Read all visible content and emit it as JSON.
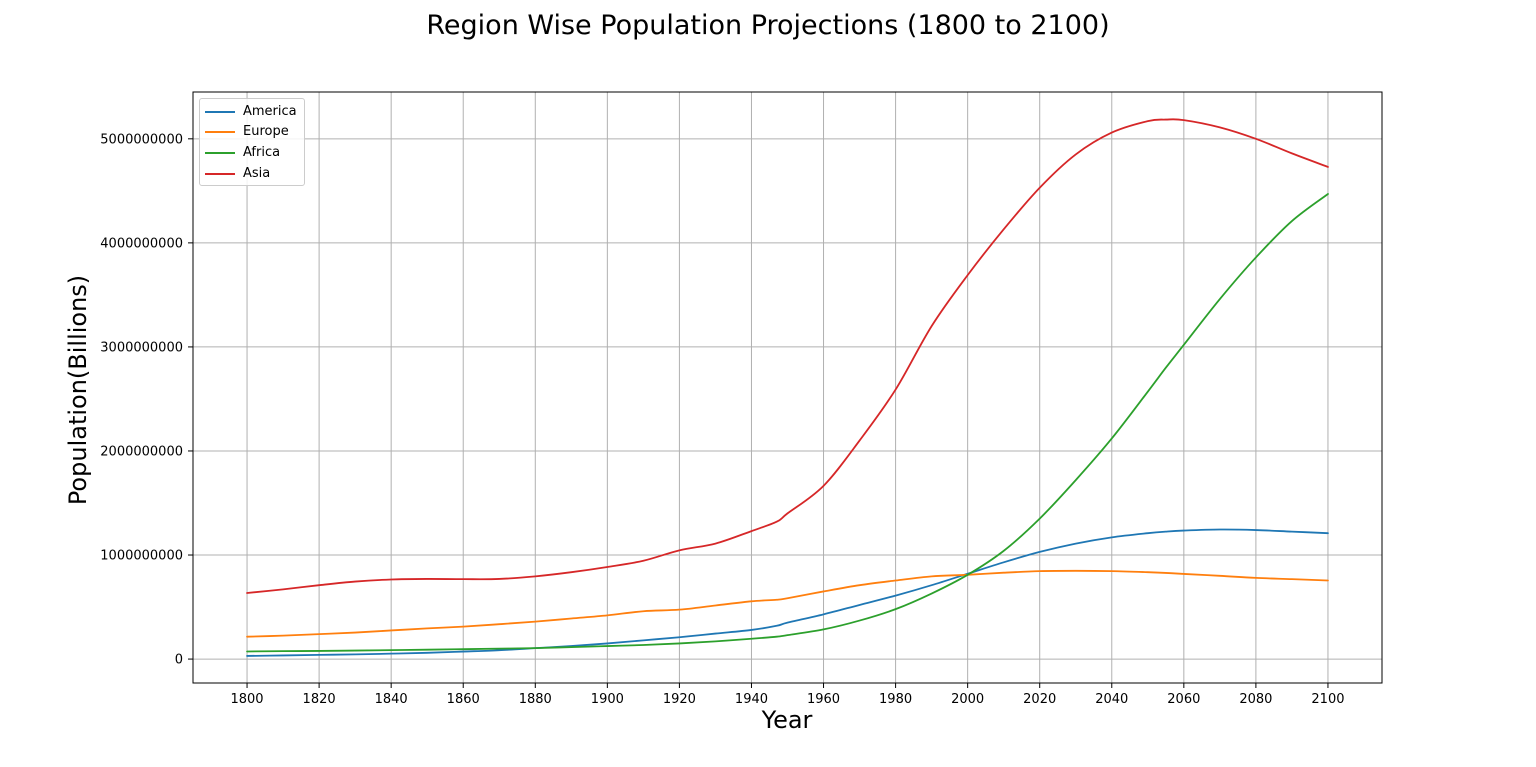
{
  "chart_data": {
    "type": "line",
    "title": "Region Wise Population Projections (1800 to 2100)",
    "xlabel": "Year",
    "ylabel": "Population(Billions)",
    "xlim": [
      1785,
      2115
    ],
    "ylim": [
      -230000000,
      5450000000
    ],
    "x_ticks": [
      1800,
      1820,
      1840,
      1860,
      1880,
      1900,
      1920,
      1940,
      1960,
      1980,
      2000,
      2020,
      2040,
      2060,
      2080,
      2100
    ],
    "y_ticks": [
      0,
      1000000000,
      2000000000,
      3000000000,
      4000000000,
      5000000000
    ],
    "y_tick_labels": [
      "0",
      "1000000000",
      "2000000000",
      "3000000000",
      "4000000000",
      "5000000000"
    ],
    "grid": true,
    "legend_position": "top-left",
    "x": [
      1800,
      1810,
      1820,
      1830,
      1840,
      1850,
      1860,
      1870,
      1880,
      1890,
      1900,
      1910,
      1920,
      1930,
      1940,
      1947,
      1950,
      1960,
      1970,
      1980,
      1990,
      2000,
      2010,
      2020,
      2030,
      2040,
      2050,
      2055,
      2060,
      2070,
      2080,
      2090,
      2100
    ],
    "series": [
      {
        "name": "America",
        "color": "#1f77b4",
        "values": [
          30000000,
          35000000,
          40000000,
          45000000,
          52000000,
          60000000,
          72000000,
          85000000,
          105000000,
          125000000,
          150000000,
          180000000,
          210000000,
          245000000,
          280000000,
          320000000,
          350000000,
          430000000,
          520000000,
          610000000,
          710000000,
          820000000,
          930000000,
          1030000000,
          1110000000,
          1170000000,
          1210000000,
          1225000000,
          1235000000,
          1245000000,
          1240000000,
          1225000000,
          1210000000
        ]
      },
      {
        "name": "Europe",
        "color": "#ff7f0e",
        "values": [
          215000000,
          225000000,
          240000000,
          255000000,
          275000000,
          295000000,
          312000000,
          335000000,
          360000000,
          390000000,
          420000000,
          460000000,
          475000000,
          515000000,
          555000000,
          570000000,
          585000000,
          650000000,
          710000000,
          755000000,
          795000000,
          810000000,
          830000000,
          845000000,
          848000000,
          845000000,
          835000000,
          828000000,
          818000000,
          800000000,
          780000000,
          768000000,
          755000000
        ]
      },
      {
        "name": "Africa",
        "color": "#2ca02c",
        "values": [
          73000000,
          76000000,
          78000000,
          82000000,
          86000000,
          90000000,
          95000000,
          100000000,
          105000000,
          115000000,
          125000000,
          135000000,
          150000000,
          170000000,
          195000000,
          215000000,
          230000000,
          285000000,
          370000000,
          480000000,
          630000000,
          810000000,
          1040000000,
          1350000000,
          1720000000,
          2120000000,
          2570000000,
          2800000000,
          3020000000,
          3460000000,
          3860000000,
          4210000000,
          4470000000
        ]
      },
      {
        "name": "Asia",
        "color": "#d62728",
        "values": [
          635000000,
          670000000,
          710000000,
          745000000,
          765000000,
          770000000,
          768000000,
          770000000,
          795000000,
          835000000,
          885000000,
          945000000,
          1045000000,
          1110000000,
          1230000000,
          1320000000,
          1400000000,
          1665000000,
          2100000000,
          2590000000,
          3200000000,
          3690000000,
          4130000000,
          4530000000,
          4850000000,
          5060000000,
          5170000000,
          5185000000,
          5180000000,
          5110000000,
          5000000000,
          4860000000,
          4730000000
        ]
      }
    ]
  }
}
